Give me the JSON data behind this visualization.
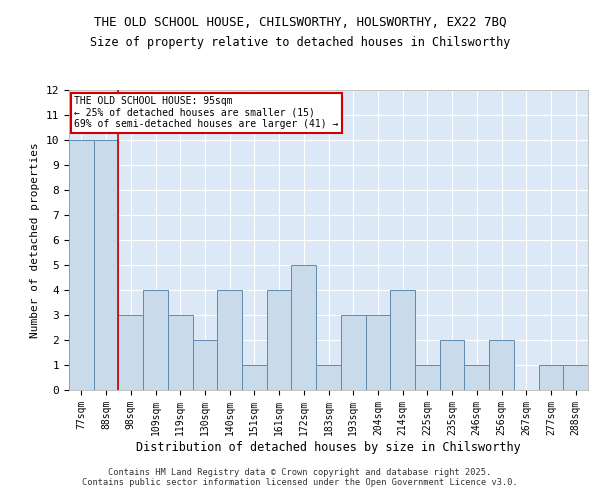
{
  "title_line1": "THE OLD SCHOOL HOUSE, CHILSWORTHY, HOLSWORTHY, EX22 7BQ",
  "title_line2": "Size of property relative to detached houses in Chilsworthy",
  "xlabel": "Distribution of detached houses by size in Chilsworthy",
  "ylabel": "Number of detached properties",
  "categories": [
    "77sqm",
    "88sqm",
    "98sqm",
    "109sqm",
    "119sqm",
    "130sqm",
    "140sqm",
    "151sqm",
    "161sqm",
    "172sqm",
    "183sqm",
    "193sqm",
    "204sqm",
    "214sqm",
    "225sqm",
    "235sqm",
    "246sqm",
    "256sqm",
    "267sqm",
    "277sqm",
    "288sqm"
  ],
  "values": [
    10,
    10,
    3,
    4,
    3,
    2,
    4,
    1,
    4,
    5,
    1,
    3,
    3,
    4,
    1,
    2,
    1,
    2,
    0,
    1,
    1
  ],
  "bar_color": "#c9daea",
  "bar_edge_color": "#5f8ab0",
  "background_color": "#dce8f5",
  "grid_color": "#ffffff",
  "red_line_x": 1.5,
  "annotation_text": "THE OLD SCHOOL HOUSE: 95sqm\n← 25% of detached houses are smaller (15)\n69% of semi-detached houses are larger (41) →",
  "annotation_box_color": "#ffffff",
  "annotation_box_edge": "#cc0000",
  "footer_text": "Contains HM Land Registry data © Crown copyright and database right 2025.\nContains public sector information licensed under the Open Government Licence v3.0.",
  "ylim": [
    0,
    12
  ],
  "yticks": [
    0,
    1,
    2,
    3,
    4,
    5,
    6,
    7,
    8,
    9,
    10,
    11,
    12
  ]
}
